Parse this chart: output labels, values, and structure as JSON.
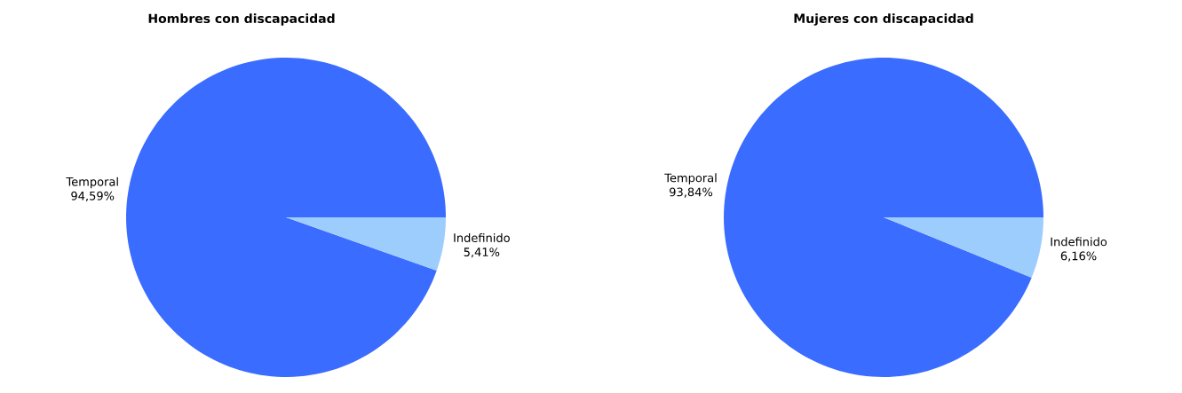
{
  "chart_data": [
    {
      "type": "pie",
      "title": "Hombres con discapacidad",
      "categories": [
        "Temporal",
        "Indefinido"
      ],
      "values": [
        94.59,
        5.41
      ],
      "colors": [
        "#3a6cff",
        "#9dcdfc"
      ],
      "value_labels": [
        "94,59%",
        "5,41%"
      ]
    },
    {
      "type": "pie",
      "title": "Mujeres con discapacidad",
      "categories": [
        "Temporal",
        "Indefinido"
      ],
      "values": [
        93.84,
        6.16
      ],
      "colors": [
        "#3a6cff",
        "#9dcdfc"
      ],
      "value_labels": [
        "93,84%",
        "6,16%"
      ]
    }
  ]
}
